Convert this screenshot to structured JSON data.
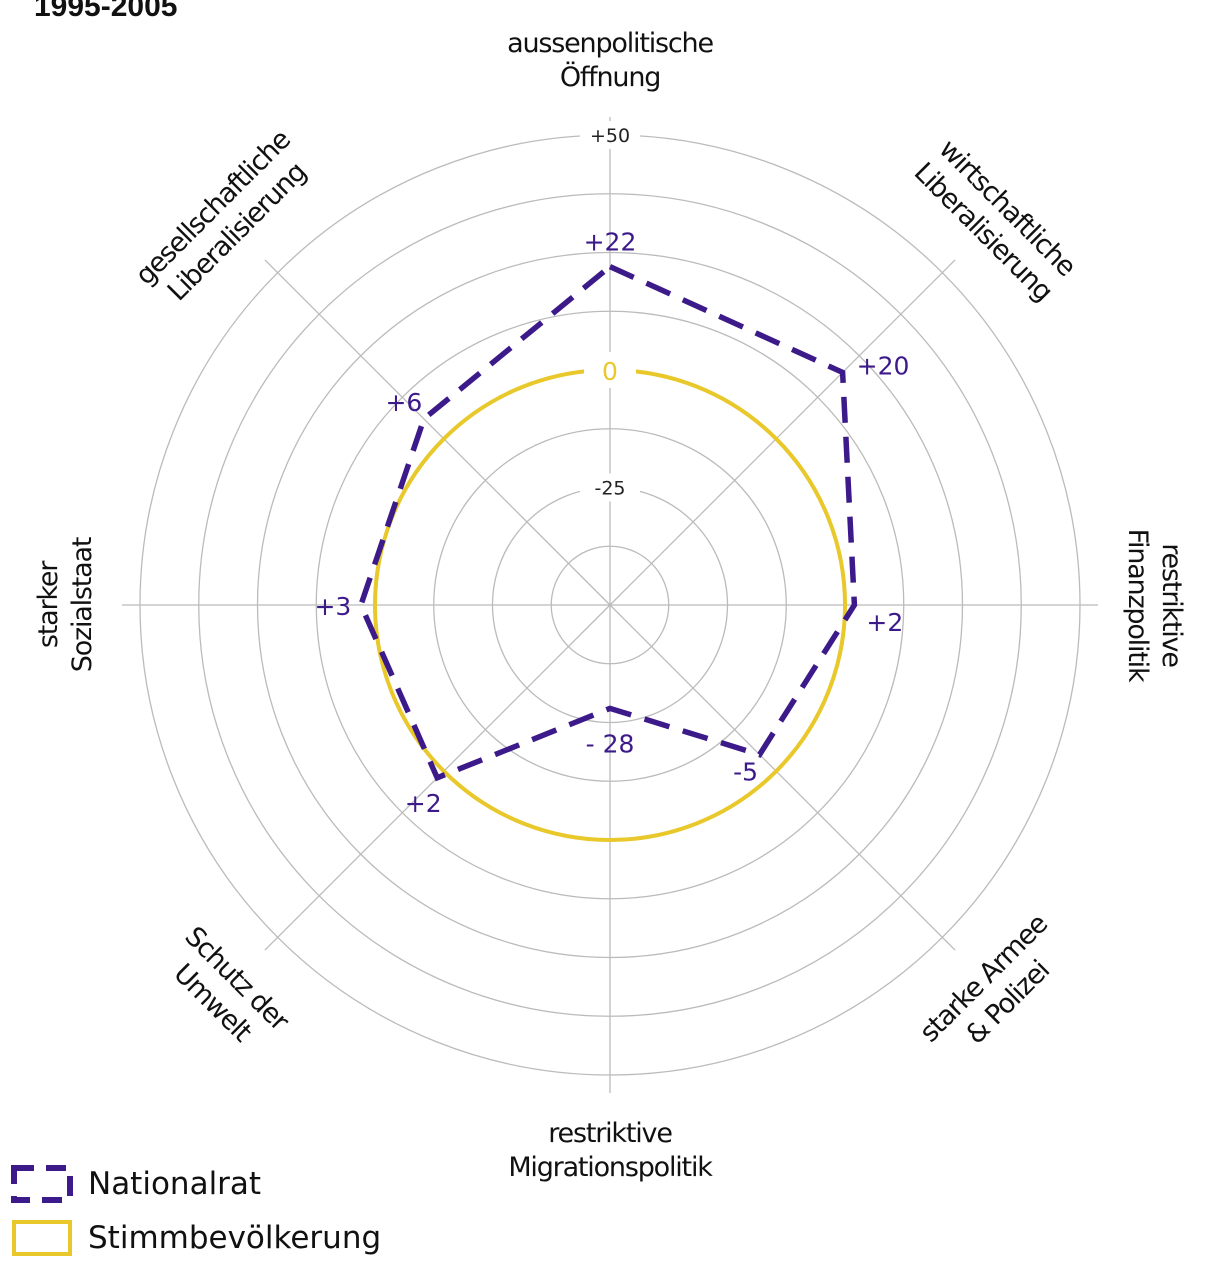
{
  "colors": {
    "nationalrat": "#3d1a8a",
    "stimmbevoelkerung": "#e8c82a",
    "grid": "#bbbbbb"
  },
  "chart_data": {
    "type": "radar",
    "title": "1995-2005",
    "axes": [
      {
        "label": [
          "aussenpolitische",
          "Öffnung"
        ]
      },
      {
        "label": [
          "wirtschaftliche",
          "Liberalisierung"
        ]
      },
      {
        "label": [
          "restriktive",
          "Finanzpolitik"
        ]
      },
      {
        "label": [
          "starke Armee",
          "& Polizei"
        ]
      },
      {
        "label": [
          "restriktive",
          "Migrationspolitik"
        ]
      },
      {
        "label": [
          "Schutz der",
          "Umwelt"
        ]
      },
      {
        "label": [
          "starker",
          "Sozialstaat"
        ]
      },
      {
        "label": [
          "gesellschaftliche",
          "Liberalisierung"
        ]
      }
    ],
    "range": [
      -50,
      50
    ],
    "grid_ticks": [
      {
        "value": 50,
        "label": "+50"
      },
      {
        "value": -25,
        "label": "-25"
      }
    ],
    "series": [
      {
        "name": "Nationalrat",
        "style": "dashed",
        "values": [
          22,
          20,
          2,
          -5,
          -28,
          2,
          3,
          6
        ],
        "value_labels": [
          "+22",
          "+20",
          "+2",
          "-5",
          "- 28",
          "+2",
          "+3",
          "+6"
        ]
      },
      {
        "name": "Stimmbevölkerung",
        "style": "solid",
        "values": [
          0,
          0,
          0,
          0,
          0,
          0,
          0,
          0
        ],
        "value_labels": [
          "0"
        ]
      }
    ]
  }
}
